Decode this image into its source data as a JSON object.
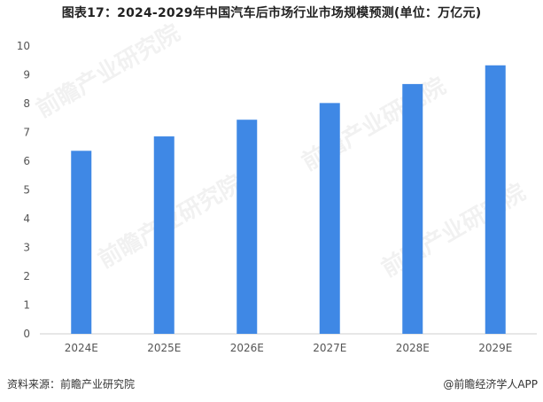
{
  "title": "图表17：2024-2029年中国汽车后市场行业市场规模预测(单位：万亿元)",
  "footer": {
    "source": "资料来源：前瞻产业研究院",
    "brand": "@前瞻经济学人APP"
  },
  "chart_data": {
    "type": "bar",
    "categories": [
      "2024E",
      "2025E",
      "2026E",
      "2027E",
      "2028E",
      "2029E"
    ],
    "values": [
      6.36,
      6.86,
      7.44,
      8.02,
      8.68,
      9.33
    ],
    "ylim": [
      0,
      10
    ],
    "yticks": [
      0,
      1,
      2,
      3,
      4,
      5,
      6,
      7,
      8,
      9,
      10
    ],
    "bar_color": "#3f88e5",
    "grid": false,
    "legend": "none"
  }
}
